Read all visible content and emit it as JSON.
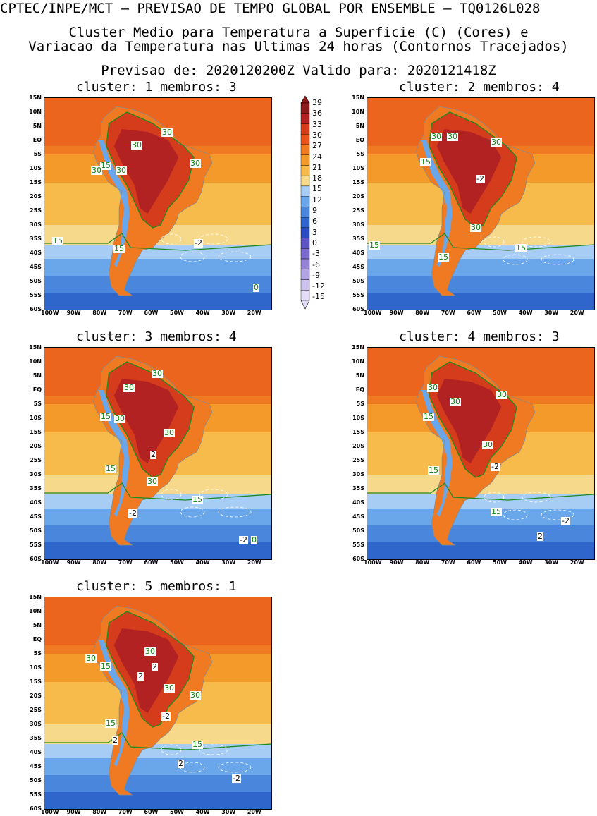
{
  "header": {
    "line1": "CPTEC/INPE/MCT – PREVISAO DE TEMPO GLOBAL POR ENSEMBLE – TQ0126L028",
    "line2": "Cluster Medio para Temperatura a Superficie (C) (Cores) e",
    "line3": "Variacao da Temperatura nas Ultimas 24 horas (Contornos Tracejados)",
    "line4": "Previsao de: 2020120200Z   Valido para: 2020121418Z"
  },
  "panels": [
    {
      "title": "cluster: 1  membros: 3",
      "labels": [
        "30",
        "30",
        "30",
        "15",
        "30",
        "30",
        "15",
        "15",
        "-2",
        "0"
      ]
    },
    {
      "title": "cluster: 2  membros: 4",
      "labels": [
        "30",
        "30",
        "30",
        "15",
        "-2",
        "30",
        "15",
        "15",
        "15"
      ]
    },
    {
      "title": "cluster: 3  membros: 4",
      "labels": [
        "30",
        "30",
        "15",
        "30",
        "30",
        "2",
        "15",
        "30",
        "15",
        "-2",
        "-2",
        "0"
      ]
    },
    {
      "title": "cluster: 4  membros: 3",
      "labels": [
        "30",
        "30",
        "30",
        "15",
        "30",
        "-2",
        "15",
        "15",
        "-2",
        "2"
      ]
    },
    {
      "title": "cluster: 5  membros: 1",
      "labels": [
        "30",
        "30",
        "15",
        "2",
        "2",
        "30",
        "30",
        "-2",
        "15",
        "2",
        "15",
        "2",
        "-2"
      ]
    }
  ],
  "lat_ticks": [
    "15N",
    "10N",
    "5N",
    "EQ",
    "5S",
    "10S",
    "15S",
    "20S",
    "25S",
    "30S",
    "35S",
    "40S",
    "45S",
    "50S",
    "55S",
    "60S"
  ],
  "lon_ticks": [
    "100W",
    "90W",
    "80W",
    "70W",
    "60W",
    "50W",
    "40W",
    "30W",
    "20W"
  ],
  "colorbar": {
    "levels": [
      "39",
      "36",
      "33",
      "30",
      "27",
      "24",
      "21",
      "18",
      "15",
      "12",
      "9",
      "6",
      "3",
      "0",
      "-3",
      "-6",
      "-9",
      "-12",
      "-15"
    ],
    "colors": [
      "#8b1a1a",
      "#b22222",
      "#d43c1c",
      "#e8531c",
      "#f07a22",
      "#f39a2a",
      "#f6bb4a",
      "#f6d98a",
      "#a8cdf5",
      "#6aa6ea",
      "#4a86dc",
      "#2f66cc",
      "#2a4bbf",
      "#5d55c4",
      "#7a6acc",
      "#9584d6",
      "#b0a4e2",
      "#cbc2ee",
      "#e2dcf6"
    ]
  }
}
